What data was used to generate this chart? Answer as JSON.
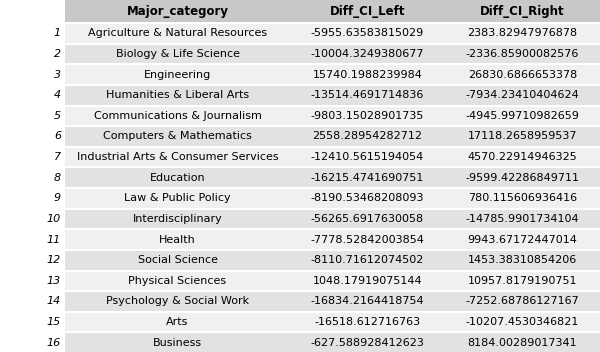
{
  "columns": [
    "Major_category",
    "Diff_CI_Left",
    "Diff_CI_Right"
  ],
  "rows": [
    [
      "Agriculture & Natural Resources",
      "-5955.63583815029",
      "2383.82947976878"
    ],
    [
      "Biology & Life Science",
      "-10004.3249380677",
      "-2336.85900082576"
    ],
    [
      "Engineering",
      "15740.1988239984",
      "26830.6866653378"
    ],
    [
      "Humanities & Liberal Arts",
      "-13514.4691714836",
      "-7934.23410404624"
    ],
    [
      "Communications & Journalism",
      "-9803.15028901735",
      "-4945.99710982659"
    ],
    [
      "Computers & Mathematics",
      "2558.28954282712",
      "17118.2658959537"
    ],
    [
      "Industrial Arts & Consumer Services",
      "-12410.5615194054",
      "4570.22914946325"
    ],
    [
      "Education",
      "-16215.4741690751",
      "-9599.42286849711"
    ],
    [
      "Law & Public Policy",
      "-8190.53468208093",
      "780.115606936416"
    ],
    [
      "Interdisciplinary",
      "-56265.6917630058",
      "-14785.9901734104"
    ],
    [
      "Health",
      "-7778.52842003854",
      "9943.67172447014"
    ],
    [
      "Social Science",
      "-8110.71612074502",
      "1453.38310854206"
    ],
    [
      "Physical Sciences",
      "1048.17919075144",
      "10957.8179190751"
    ],
    [
      "Psychology & Social Work",
      "-16834.2164418754",
      "-7252.68786127167"
    ],
    [
      "Arts",
      "-16518.612716763",
      "-10207.4530346821"
    ],
    [
      "Business",
      "-627.588928412623",
      "8184.00289017341"
    ]
  ],
  "row_indices": [
    "1",
    "2",
    "3",
    "4",
    "5",
    "6",
    "7",
    "8",
    "9",
    "10",
    "11",
    "12",
    "13",
    "14",
    "15",
    "16"
  ],
  "header_bg": "#c8c8c8",
  "even_row_bg": "#e2e2e2",
  "odd_row_bg": "#f0f0f0",
  "index_bg": "#ffffff",
  "header_font_size": 8.5,
  "cell_font_size": 8.0,
  "fig_width": 6.0,
  "fig_height": 3.52,
  "dpi": 100
}
